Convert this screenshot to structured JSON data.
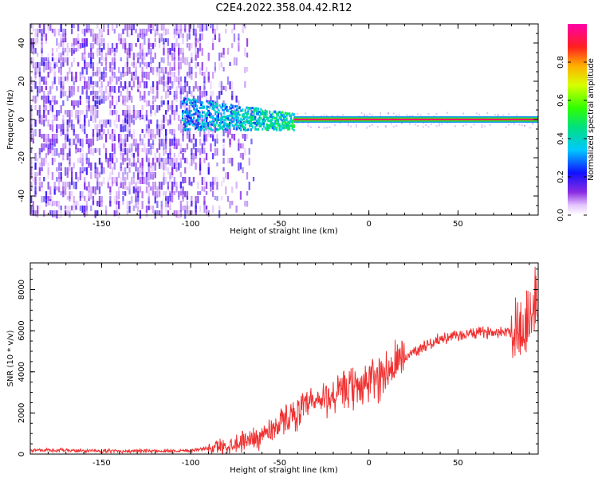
{
  "title": "C2E4.2022.358.04.42.R12",
  "chart_data": [
    {
      "type": "heatmap",
      "xlabel": "Height of straight line (km)",
      "ylabel": "Frequency (Hz)",
      "xlim": [
        -190,
        95
      ],
      "ylim": [
        -50,
        50
      ],
      "xticks": [
        -150,
        -100,
        -50,
        0,
        50
      ],
      "yticks": [
        -40,
        -20,
        0,
        20,
        40
      ],
      "colorbar": {
        "label": "Normalized spectral amplitude",
        "range": [
          0.0,
          1.0
        ],
        "ticks": [
          0.0,
          0.2,
          0.4,
          0.6,
          0.8
        ],
        "colormap": "rainbow (white-violet-blue-cyan-green-yellow-red-magenta)"
      },
      "features": {
        "noise_region_x": [
          -190,
          -65
        ],
        "noise_amplitude": 0.1,
        "transition_region_x": [
          -105,
          -42
        ],
        "transition_freq_spread_hz": [
          -5,
          12
        ],
        "line_x": [
          -42,
          95
        ],
        "line_freq_hz": 0,
        "line_amplitude": 0.95
      }
    },
    {
      "type": "line",
      "xlabel": "Height of straight line (km)",
      "ylabel": "SNR (10 * v/v)",
      "xlim": [
        -190,
        95
      ],
      "ylim": [
        0,
        9300
      ],
      "xticks": [
        -150,
        -100,
        -50,
        0,
        50
      ],
      "yticks": [
        0,
        2000,
        4000,
        6000,
        8000
      ],
      "color": "#f03030",
      "series_profile": {
        "x": [
          -190,
          -150,
          -120,
          -100,
          -80,
          -60,
          -45,
          -30,
          -15,
          0,
          15,
          25,
          40,
          60,
          80,
          88,
          95
        ],
        "y": [
          200,
          150,
          150,
          180,
          400,
          900,
          1800,
          2500,
          3000,
          3500,
          4300,
          5000,
          5600,
          5900,
          6000,
          6200,
          7500
        ]
      }
    }
  ]
}
